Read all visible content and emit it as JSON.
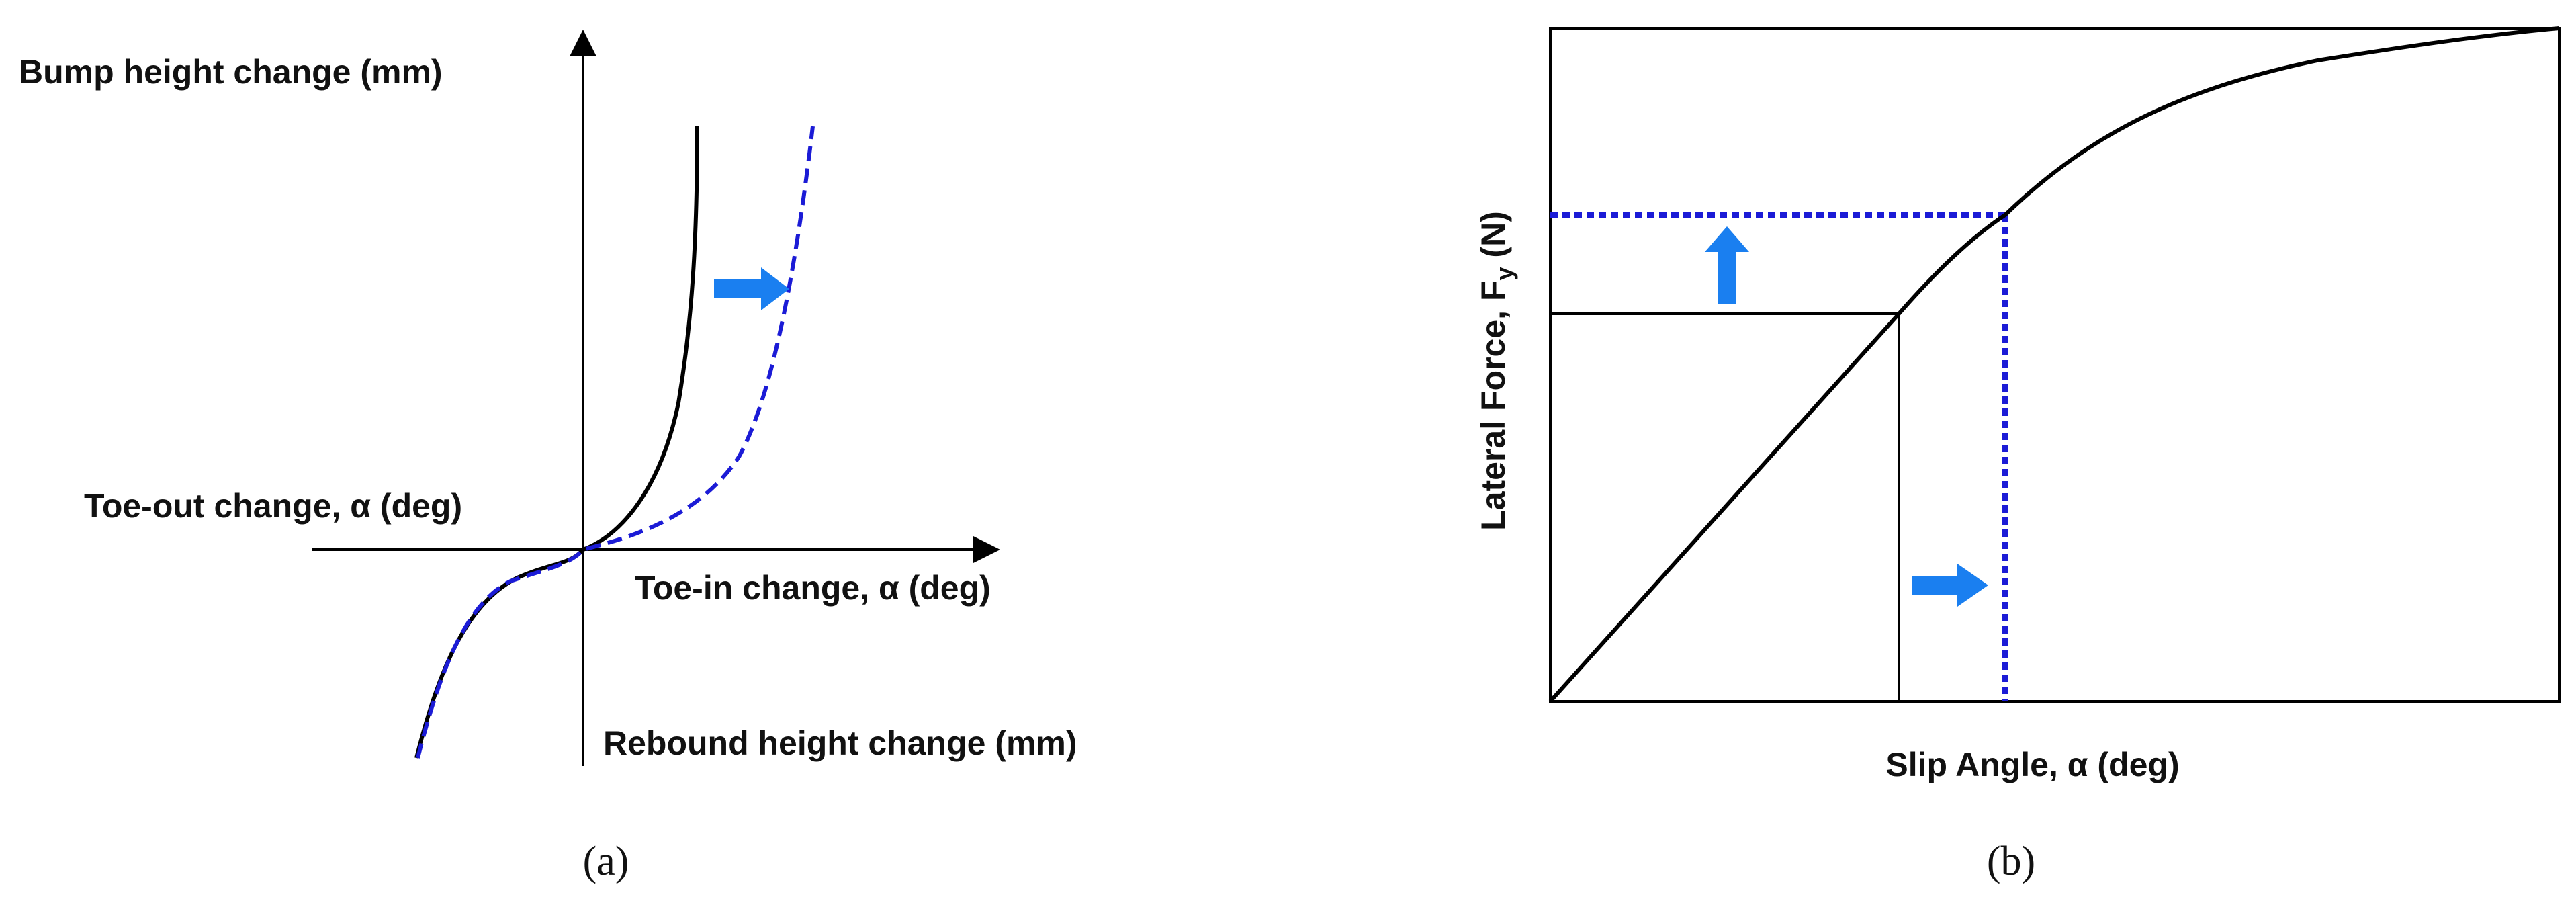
{
  "panel_a": {
    "caption": "(a)",
    "y_positive_label": "Bump height change (mm)",
    "y_negative_label": "Rebound height change (mm)",
    "x_positive_label": "Toe-in change, α (deg)",
    "x_negative_label": "Toe-out change, α (deg)"
  },
  "panel_b": {
    "caption": "(b)",
    "x_label": "Slip Angle, α (deg)",
    "y_label_main": "Lateral Force, F",
    "y_label_sub": "y",
    "y_label_unit": " (N)"
  },
  "colors": {
    "baseline_curve": "#000000",
    "modified_curve": "#1b1bd6",
    "shift_arrow": "#1a7ff0"
  }
}
